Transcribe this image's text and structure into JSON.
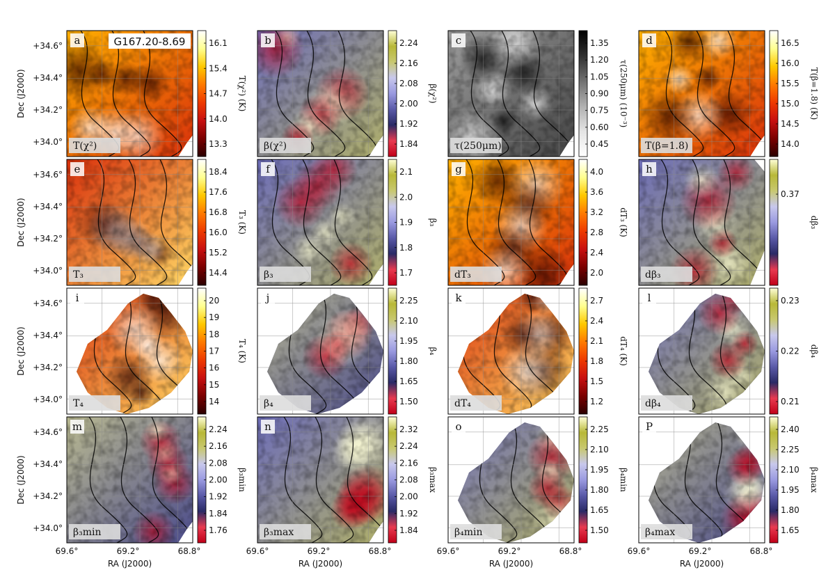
{
  "figure": {
    "region_name": "G167.20-8.69",
    "xaxis_label": "RA (J2000)",
    "yaxis_label": "Dec (J2000)",
    "x_ticks": [
      "69.6°",
      "69.2°",
      "68.8°"
    ],
    "y_ticks": [
      "+34.6°",
      "+34.4°",
      "+34.2°",
      "+34.0°"
    ]
  },
  "colors": {
    "hot": [
      "#2a0000",
      "#7a0000",
      "#c81010",
      "#ee3a00",
      "#ff7a00",
      "#ffc800",
      "#ffff90",
      "#ffffff"
    ],
    "diverging": [
      "#c00018",
      "#e83a50",
      "#2a2a66",
      "#5a5aa8",
      "#9a9ae0",
      "#c8c8ec",
      "#c8c870",
      "#b8b838",
      "#ffffd8"
    ],
    "gray": [
      "#ffffff",
      "#e4e4e4",
      "#b0b0b0",
      "#707070",
      "#303030",
      "#000000"
    ]
  },
  "panels": [
    {
      "letter": "a",
      "label": "T(χ²)",
      "cbar_title": "T(χ²) (K)",
      "ticks": [
        "16.1",
        "15.4",
        "14.7",
        "14.0",
        "13.3"
      ],
      "cmap": "hot"
    },
    {
      "letter": "b",
      "label": "β(χ²)",
      "cbar_title": "β(χ²)",
      "ticks": [
        "2.24",
        "2.16",
        "2.08",
        "2.00",
        "1.92",
        "1.84"
      ],
      "cmap": "diverging"
    },
    {
      "letter": "c",
      "label": "τ(250μm)",
      "cbar_title": "τ(250μm) (10⁻³)",
      "ticks": [
        "1.35",
        "1.20",
        "1.05",
        "0.90",
        "0.75",
        "0.60",
        "0.45"
      ],
      "cmap": "gray"
    },
    {
      "letter": "d",
      "label": "T(β=1.8)",
      "cbar_title": "T(β=1.8) (K)",
      "ticks": [
        "16.5",
        "16.0",
        "15.5",
        "15.0",
        "14.5",
        "14.0"
      ],
      "cmap": "hot"
    },
    {
      "letter": "e",
      "label": "T₃",
      "cbar_title": "T₃ (K)",
      "ticks": [
        "18.4",
        "17.6",
        "16.8",
        "16.0",
        "15.2",
        "14.4"
      ],
      "cmap": "hot"
    },
    {
      "letter": "f",
      "label": "β₃",
      "cbar_title": "β₃",
      "ticks": [
        "2.1",
        "2.0",
        "1.9",
        "1.8",
        "1.7"
      ],
      "cmap": "diverging"
    },
    {
      "letter": "g",
      "label": "dT₃",
      "cbar_title": "dT₃ (K)",
      "ticks": [
        "4.0",
        "3.6",
        "3.2",
        "2.8",
        "2.4",
        "2.0"
      ],
      "cmap": "hot"
    },
    {
      "letter": "h",
      "label": "dβ₃",
      "cbar_title": "dβ₃",
      "ticks": [
        "0.37"
      ],
      "cmap": "diverging"
    },
    {
      "letter": "i",
      "label": "T₄",
      "cbar_title": "T₄ (K)",
      "ticks": [
        "20",
        "19",
        "18",
        "17",
        "16",
        "15",
        "14"
      ],
      "cmap": "hot"
    },
    {
      "letter": "j",
      "label": "β₄",
      "cbar_title": "β₄",
      "ticks": [
        "2.25",
        "2.10",
        "1.95",
        "1.80",
        "1.65",
        "1.50"
      ],
      "cmap": "diverging"
    },
    {
      "letter": "k",
      "label": "dT₄",
      "cbar_title": "dT₄ (K)",
      "ticks": [
        "2.7",
        "2.4",
        "2.1",
        "1.8",
        "1.5",
        "1.2"
      ],
      "cmap": "hot"
    },
    {
      "letter": "l",
      "label": "dβ₄",
      "cbar_title": "dβ₄",
      "ticks": [
        "0.23",
        "0.22",
        "0.21"
      ],
      "cmap": "diverging"
    },
    {
      "letter": "m",
      "label": "β₃min",
      "cbar_title": "β₃min",
      "ticks": [
        "2.24",
        "2.16",
        "2.08",
        "2.00",
        "1.92",
        "1.84",
        "1.76"
      ],
      "cmap": "diverging"
    },
    {
      "letter": "n",
      "label": "β₃max",
      "cbar_title": "β₃max",
      "ticks": [
        "2.32",
        "2.24",
        "2.16",
        "2.08",
        "2.00",
        "1.92",
        "1.84"
      ],
      "cmap": "diverging"
    },
    {
      "letter": "o",
      "label": "β₄min",
      "cbar_title": "β₄min",
      "ticks": [
        "2.25",
        "2.10",
        "1.95",
        "1.80",
        "1.65",
        "1.50"
      ],
      "cmap": "diverging"
    },
    {
      "letter": "P",
      "label": "β₄max",
      "cbar_title": "β₄max",
      "ticks": [
        "2.40",
        "2.25",
        "2.10",
        "1.95",
        "1.80",
        "1.65"
      ],
      "cmap": "diverging"
    }
  ]
}
